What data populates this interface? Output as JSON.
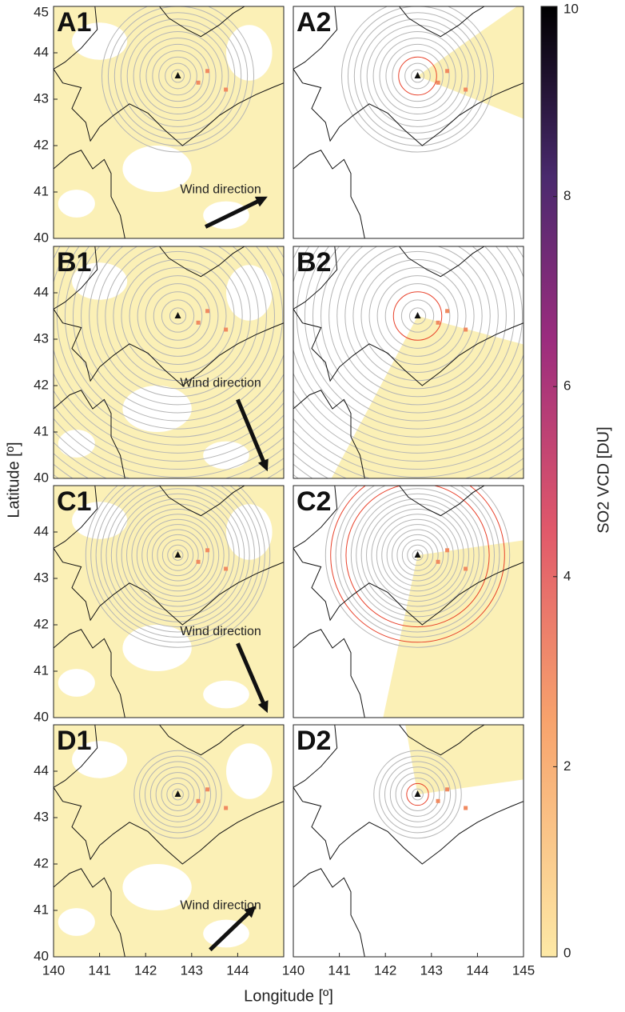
{
  "chart_data": [
    {
      "type": "map",
      "label": "A1",
      "annotation": "Wind direction",
      "xlim": [
        140,
        145
      ],
      "ylim": [
        40,
        45
      ],
      "yticks": [
        40,
        41,
        42,
        43,
        44,
        45
      ]
    },
    {
      "type": "map",
      "label": "A2",
      "xlim": [
        140,
        145
      ],
      "ylim": [
        40,
        45
      ]
    },
    {
      "type": "map",
      "label": "B1",
      "annotation": "Wind direction",
      "xlim": [
        140,
        145
      ],
      "ylim": [
        40,
        45
      ],
      "yticks": [
        40,
        41,
        42,
        43,
        44
      ]
    },
    {
      "type": "map",
      "label": "B2",
      "xlim": [
        140,
        145
      ],
      "ylim": [
        40,
        45
      ]
    },
    {
      "type": "map",
      "label": "C1",
      "annotation": "Wind direction",
      "xlim": [
        140,
        145
      ],
      "ylim": [
        40,
        45
      ],
      "yticks": [
        40,
        41,
        42,
        43,
        44
      ]
    },
    {
      "type": "map",
      "label": "C2",
      "xlim": [
        140,
        145
      ],
      "ylim": [
        40,
        45
      ]
    },
    {
      "type": "map",
      "label": "D1",
      "annotation": "Wind direction",
      "xlim": [
        140,
        145
      ],
      "ylim": [
        40,
        45
      ],
      "yticks": [
        40,
        41,
        42,
        43,
        44
      ],
      "xticks": [
        140,
        141,
        142,
        143,
        144
      ]
    },
    {
      "type": "map",
      "label": "D2",
      "xlim": [
        140,
        145
      ],
      "ylim": [
        40,
        45
      ],
      "xticks": [
        140,
        141,
        142,
        143,
        144,
        145
      ]
    },
    {
      "type": "colorbar",
      "label": "SO2 VCD [DU]",
      "ylim": [
        0,
        10
      ],
      "yticks": [
        0,
        2,
        4,
        6,
        8,
        10
      ]
    }
  ],
  "x_label": "Longitude [º]",
  "y_label": "Latitude [º]"
}
